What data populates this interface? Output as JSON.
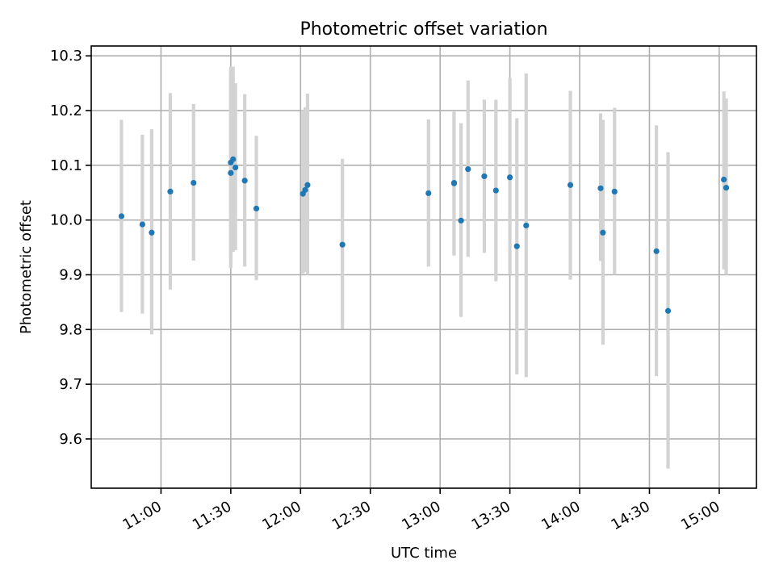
{
  "chart_data": {
    "type": "scatter",
    "title": "Photometric offset variation",
    "xlabel": "UTC time",
    "ylabel": "Photometric offset",
    "x_is_time": true,
    "xlim": [
      "10:30",
      "15:16"
    ],
    "ylim": [
      9.51,
      10.318
    ],
    "xticks": [
      "11:00",
      "11:30",
      "12:00",
      "12:30",
      "13:00",
      "13:30",
      "14:00",
      "14:30",
      "15:00"
    ],
    "yticks": [
      9.6,
      9.7,
      9.8,
      9.9,
      10.0,
      10.1,
      10.2,
      10.3
    ],
    "ytick_labels": [
      "9.6",
      "9.7",
      "9.8",
      "9.9",
      "10.0",
      "10.1",
      "10.2",
      "10.3"
    ],
    "grid": true,
    "colors": {
      "point": "#1f77b4",
      "errorbar": "#d3d3d3"
    },
    "series": [
      {
        "points": [
          {
            "t": "10:43",
            "y": 10.007,
            "lo": 9.832,
            "hi": 10.183
          },
          {
            "t": "10:52",
            "y": 9.992,
            "lo": 9.829,
            "hi": 10.156
          },
          {
            "t": "10:56",
            "y": 9.977,
            "lo": 9.791,
            "hi": 10.166
          },
          {
            "t": "11:04",
            "y": 10.052,
            "lo": 9.873,
            "hi": 10.232
          },
          {
            "t": "11:14",
            "y": 10.068,
            "lo": 9.926,
            "hi": 10.212
          },
          {
            "t": "11:30",
            "y": 10.086,
            "lo": 9.912,
            "hi": 10.27
          },
          {
            "t": "11:30",
            "y": 10.105,
            "lo": 9.93,
            "hi": 10.28
          },
          {
            "t": "11:31",
            "y": 10.111,
            "lo": 9.942,
            "hi": 10.28
          },
          {
            "t": "11:32",
            "y": 10.096,
            "lo": 9.945,
            "hi": 10.25
          },
          {
            "t": "11:36",
            "y": 10.072,
            "lo": 9.915,
            "hi": 10.23
          },
          {
            "t": "11:41",
            "y": 10.021,
            "lo": 9.89,
            "hi": 10.154
          },
          {
            "t": "12:01",
            "y": 10.048,
            "lo": 9.902,
            "hi": 10.2
          },
          {
            "t": "12:02",
            "y": 10.055,
            "lo": 9.905,
            "hi": 10.206
          },
          {
            "t": "12:03",
            "y": 10.064,
            "lo": 9.9,
            "hi": 10.231
          },
          {
            "t": "12:18",
            "y": 9.955,
            "lo": 9.801,
            "hi": 10.112
          },
          {
            "t": "12:55",
            "y": 10.049,
            "lo": 9.915,
            "hi": 10.184
          },
          {
            "t": "13:06",
            "y": 10.068,
            "lo": 9.935,
            "hi": 10.198
          },
          {
            "t": "13:06",
            "y": 10.067,
            "lo": 9.94,
            "hi": 10.195
          },
          {
            "t": "13:09",
            "y": 9.999,
            "lo": 9.823,
            "hi": 10.177
          },
          {
            "t": "13:12",
            "y": 10.093,
            "lo": 9.933,
            "hi": 10.255
          },
          {
            "t": "13:19",
            "y": 10.08,
            "lo": 9.94,
            "hi": 10.22
          },
          {
            "t": "13:24",
            "y": 10.054,
            "lo": 9.888,
            "hi": 10.22
          },
          {
            "t": "13:30",
            "y": 10.078,
            "lo": 9.9,
            "hi": 10.26
          },
          {
            "t": "13:33",
            "y": 9.952,
            "lo": 9.718,
            "hi": 10.186
          },
          {
            "t": "13:37",
            "y": 9.99,
            "lo": 9.713,
            "hi": 10.268
          },
          {
            "t": "13:56",
            "y": 10.064,
            "lo": 9.891,
            "hi": 10.236
          },
          {
            "t": "14:09",
            "y": 10.058,
            "lo": 9.925,
            "hi": 10.195
          },
          {
            "t": "14:10",
            "y": 9.977,
            "lo": 9.772,
            "hi": 10.183
          },
          {
            "t": "14:15",
            "y": 10.052,
            "lo": 9.9,
            "hi": 10.205
          },
          {
            "t": "14:33",
            "y": 9.943,
            "lo": 9.715,
            "hi": 10.173
          },
          {
            "t": "14:38",
            "y": 9.834,
            "lo": 9.546,
            "hi": 10.124
          },
          {
            "t": "15:02",
            "y": 10.074,
            "lo": 9.91,
            "hi": 10.235
          },
          {
            "t": "15:03",
            "y": 10.059,
            "lo": 9.9,
            "hi": 10.222
          }
        ]
      }
    ]
  }
}
